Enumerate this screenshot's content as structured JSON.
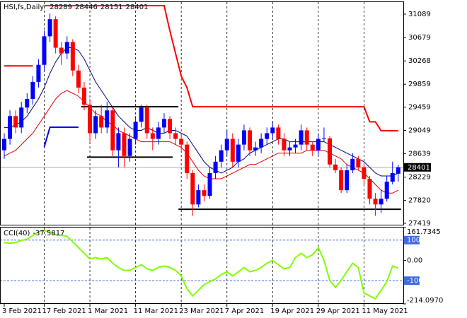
{
  "chart_data": {
    "type": "candlestick",
    "symbol": "HSI,fs,Daily",
    "categories": [
      "3 Feb 2021",
      null,
      null,
      null,
      null,
      null,
      null,
      "17 Feb 2021",
      null,
      null,
      null,
      null,
      null,
      null,
      null,
      "1 Mar 2021",
      null,
      null,
      null,
      null,
      null,
      null,
      null,
      "11 Mar 2021",
      null,
      null,
      null,
      null,
      null,
      null,
      null,
      "23 Mar 2021",
      null,
      null,
      null,
      null,
      null,
      null,
      null,
      "7 Apr 2021",
      null,
      null,
      null,
      null,
      null,
      null,
      null,
      "19 Apr 2021",
      null,
      null,
      null,
      null,
      null,
      null,
      null,
      "29 Apr 2021",
      null,
      null,
      null,
      null,
      null,
      null,
      null,
      "11 May 2021",
      null,
      null,
      null,
      null,
      null,
      null
    ],
    "candles": [
      [
        28700,
        29000,
        28550,
        28900
      ],
      [
        28900,
        29400,
        28800,
        29300
      ],
      [
        29300,
        29400,
        29000,
        29100
      ],
      [
        29100,
        29550,
        29000,
        29450
      ],
      [
        29450,
        29700,
        29350,
        29600
      ],
      [
        29600,
        30000,
        29500,
        29900
      ],
      [
        29900,
        30300,
        29800,
        30200
      ],
      [
        30200,
        30800,
        30100,
        30700
      ],
      [
        30700,
        31100,
        30600,
        31000
      ],
      [
        31000,
        31050,
        30400,
        30500
      ],
      [
        30500,
        30600,
        30200,
        30400
      ],
      [
        30400,
        30700,
        30300,
        30600
      ],
      [
        30600,
        30650,
        30000,
        30100
      ],
      [
        30100,
        30200,
        29700,
        29800
      ],
      [
        29800,
        29900,
        29400,
        29500
      ],
      [
        29500,
        29600,
        28850,
        29000
      ],
      [
        29000,
        29400,
        28900,
        29300
      ],
      [
        29300,
        29500,
        29000,
        29100
      ],
      [
        29100,
        29550,
        29000,
        29400
      ],
      [
        29400,
        29450,
        28600,
        28700
      ],
      [
        28700,
        29100,
        28400,
        29000
      ],
      [
        29000,
        29100,
        28400,
        28600
      ],
      [
        28600,
        29000,
        28500,
        28900
      ],
      [
        28900,
        29300,
        28800,
        29200
      ],
      [
        29200,
        29500,
        29100,
        29450
      ],
      [
        29450,
        29500,
        28900,
        29000
      ],
      [
        29000,
        29100,
        28700,
        28900
      ],
      [
        28900,
        29200,
        28800,
        29100
      ],
      [
        29100,
        29350,
        29000,
        29250
      ],
      [
        29250,
        29300,
        28900,
        29000
      ],
      [
        29000,
        29100,
        28800,
        28900
      ],
      [
        28900,
        29000,
        28700,
        28800
      ],
      [
        28800,
        28850,
        28200,
        28300
      ],
      [
        28300,
        28350,
        27550,
        27750
      ],
      [
        27750,
        28100,
        27700,
        28000
      ],
      [
        28000,
        28100,
        27800,
        27900
      ],
      [
        27900,
        28400,
        27850,
        28300
      ],
      [
        28300,
        28600,
        28200,
        28500
      ],
      [
        28500,
        28800,
        28400,
        28700
      ],
      [
        28700,
        29050,
        28600,
        28900
      ],
      [
        28900,
        29000,
        28400,
        28500
      ],
      [
        28500,
        28900,
        28400,
        28800
      ],
      [
        28800,
        29150,
        28700,
        29050
      ],
      [
        29050,
        29100,
        28600,
        28700
      ],
      [
        28700,
        28850,
        28600,
        28750
      ],
      [
        28750,
        29000,
        28650,
        28900
      ],
      [
        28900,
        29100,
        28800,
        29000
      ],
      [
        29000,
        29200,
        28900,
        29100
      ],
      [
        29100,
        29150,
        28800,
        28900
      ],
      [
        28900,
        29000,
        28600,
        28700
      ],
      [
        28700,
        28850,
        28600,
        28750
      ],
      [
        28750,
        28900,
        28650,
        28800
      ],
      [
        28800,
        29150,
        28700,
        29050
      ],
      [
        29050,
        29100,
        28700,
        28800
      ],
      [
        28800,
        28850,
        28600,
        28700
      ],
      [
        28700,
        29000,
        28600,
        28900
      ],
      [
        28900,
        29100,
        28850,
        28910
      ],
      [
        28910,
        28950,
        28400,
        28450
      ],
      [
        28450,
        28550,
        28300,
        28350
      ],
      [
        28350,
        28400,
        27950,
        28000
      ],
      [
        28000,
        28450,
        27950,
        28350
      ],
      [
        28350,
        28650,
        28300,
        28550
      ],
      [
        28550,
        28600,
        28350,
        28400
      ],
      [
        28400,
        28450,
        28100,
        28200
      ],
      [
        28200,
        28250,
        27750,
        27850
      ],
      [
        27850,
        27950,
        27550,
        27750
      ],
      [
        27750,
        28000,
        27600,
        27850
      ],
      [
        27850,
        28250,
        27800,
        28150
      ],
      [
        28150,
        28500,
        28100,
        28300
      ],
      [
        28289,
        28446,
        28151,
        28401
      ]
    ],
    "up_color": "#0000ff",
    "down_color": "#ff0000",
    "ylim": [
      27394,
      31300
    ],
    "yticks": [
      31089,
      30679,
      30268,
      29859,
      29459,
      29049,
      28639,
      28229,
      27820,
      27419
    ],
    "grid": true,
    "series": [
      {
        "color": "#000080",
        "values": [
          29100,
          29100,
          29150,
          29200,
          29300,
          29450,
          29600,
          29800,
          30050,
          30250,
          30400,
          30500,
          30500,
          30450,
          30300,
          30100,
          29900,
          29750,
          29600,
          29450,
          29300,
          29200,
          29100,
          29050,
          29050,
          29100,
          29050,
          29000,
          29000,
          29050,
          29050,
          29000,
          28950,
          28800,
          28650,
          28500,
          28400,
          28350,
          28300,
          28350,
          28400,
          28500,
          28550,
          28650,
          28700,
          28750,
          28800,
          28850,
          28900,
          28900,
          28850,
          28850,
          28850,
          28850,
          28850,
          28850,
          28850,
          28800,
          28750,
          28700,
          28650,
          28600,
          28550,
          28500,
          28400,
          28300,
          28250,
          28250,
          28250,
          28300
        ]
      },
      {
        "color": "#e00000",
        "values": [
          28600,
          28650,
          28700,
          28800,
          28900,
          29000,
          29150,
          29300,
          29450,
          29600,
          29700,
          29750,
          29700,
          29650,
          29550,
          29450,
          29350,
          29300,
          29200,
          29150,
          29050,
          29000,
          28950,
          28900,
          28850,
          28850,
          28850,
          28850,
          28850,
          28850,
          28800,
          28750,
          28650,
          28500,
          28350,
          28250,
          28200,
          28200,
          28200,
          28250,
          28300,
          28350,
          28400,
          28450,
          28450,
          28500,
          28550,
          28600,
          28650,
          28650,
          28650,
          28650,
          28650,
          28700,
          28700,
          28700,
          28700,
          28650,
          28600,
          28550,
          28450,
          28400,
          28350,
          28300,
          28200,
          28100,
          28000,
          27950,
          27950,
          28000
        ]
      },
      {
        "color": "#ff0000",
        "width": 2,
        "values": [
          30180,
          30180,
          30180,
          30180,
          30180,
          30180,
          null,
          31238,
          31238,
          31238,
          31238,
          31238,
          31238,
          31238,
          31238,
          31238,
          31238,
          31238,
          31238,
          31238,
          31238,
          31238,
          31238,
          31238,
          31238,
          31238,
          31238,
          31238,
          31238,
          30800,
          30400,
          30000,
          29800,
          29465,
          29465,
          29465,
          29465,
          29465,
          29465,
          29465,
          29465,
          29465,
          29465,
          29465,
          29465,
          29465,
          29465,
          29465,
          29465,
          29465,
          29465,
          29465,
          29465,
          29465,
          29465,
          29465,
          29465,
          29465,
          29465,
          29465,
          29465,
          29465,
          29465,
          29465,
          29200,
          29200,
          29043,
          29043,
          29043,
          29043
        ]
      },
      {
        "color": "#0000ff",
        "width": 2,
        "values": [
          null,
          null,
          null,
          null,
          null,
          null,
          null,
          28760,
          29105,
          29105,
          29105,
          29105,
          29105,
          29105,
          null,
          null,
          null,
          null,
          null,
          null,
          null,
          null,
          null,
          null,
          null,
          null,
          null,
          null,
          null,
          null,
          null,
          null,
          null,
          null,
          null,
          null,
          null,
          null,
          null,
          null,
          null,
          null,
          null,
          null,
          null,
          null,
          null,
          null,
          null,
          null,
          null,
          null,
          null,
          null,
          null,
          null,
          null,
          null,
          null,
          null,
          null,
          null,
          null,
          null,
          null,
          null,
          null,
          null,
          null,
          null
        ]
      }
    ],
    "levels": [
      29465,
      28580,
      27665
    ],
    "level_color": "#000000",
    "indicator": {
      "title": "CCI(40)",
      "color": "#7fff00",
      "ylim": [
        -214.097,
        161.7345
      ],
      "yticks": [
        161.7345,
        100,
        {
          "value": 0,
          "label": "0.00"
        },
        -100,
        {
          "value": -214.097,
          "label": "-214.0970"
        }
      ],
      "levels": [
        100,
        -100
      ],
      "values": [
        88,
        84,
        88,
        98,
        105,
        123,
        140,
        147,
        140,
        126,
        123,
        119,
        91,
        63,
        35,
        7,
        14,
        7,
        14,
        -14,
        -35,
        -49,
        -49,
        -35,
        -21,
        -42,
        -49,
        -35,
        -28,
        -35,
        -49,
        -77,
        -140,
        -175,
        -147,
        -119,
        -105,
        -91,
        -70,
        -56,
        -77,
        -56,
        -35,
        -56,
        -49,
        -35,
        -14,
        0,
        -21,
        -42,
        -35,
        14,
        35,
        14,
        28,
        63,
        0,
        -98,
        -133,
        -98,
        -56,
        -14,
        -35,
        -161,
        -175,
        -189,
        -147,
        -105,
        -28,
        -37.5817
      ]
    }
  }
}
